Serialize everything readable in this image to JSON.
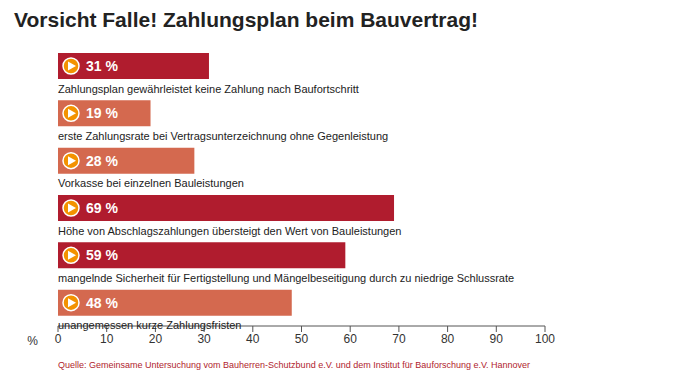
{
  "chart_data": {
    "type": "bar",
    "orientation": "horizontal",
    "title": "Vorsicht Falle! Zahlungsplan beim Bauvertrag!",
    "categories": [
      "Zahlungsplan gewährleistet keine Zahlung nach Baufortschritt",
      "erste Zahlungsrate bei Vertragsunterzeichnung ohne Gegenleistung",
      "Vorkasse bei einzelnen Bauleistungen",
      "Höhe von Abschlagszahlungen übersteigt den Wert von Bauleistungen",
      "mangelnde Sicherheit für Fertigstellung und Mängelbeseitigung durch zu niedrige Schlussrate",
      "unangemessen kurze Zahlungsfristen"
    ],
    "values": [
      31,
      19,
      28,
      69,
      59,
      48
    ],
    "value_labels": [
      "31 %",
      "19 %",
      "28 %",
      "69 %",
      "59 %",
      "48 %"
    ],
    "data_labels": true,
    "colors": [
      "#b01c2e",
      "#d4694f",
      "#d4694f",
      "#b01c2e",
      "#b01c2e",
      "#d4694f"
    ],
    "x_label": "%",
    "xlim": [
      0,
      100
    ],
    "xticks": [
      0,
      10,
      20,
      30,
      40,
      50,
      60,
      70,
      80,
      90,
      100
    ],
    "grid": false,
    "source": "Quelle: Gemeinsame Untersuchung vom Bauherren-Schutzbund e.V. und dem Institut für Bauforschung e.V. Hannover"
  }
}
